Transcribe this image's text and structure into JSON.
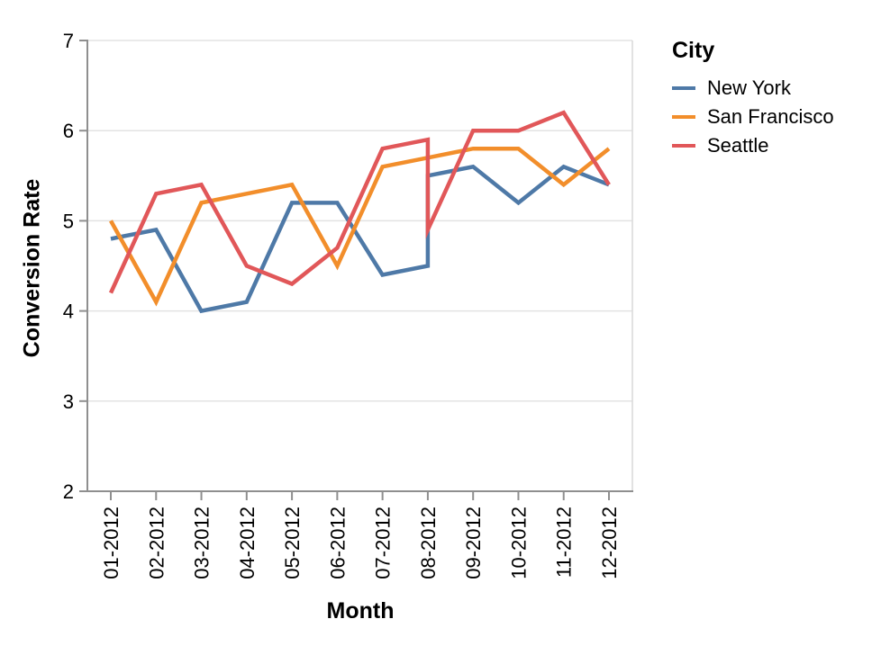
{
  "chart_data": {
    "type": "line",
    "title": "",
    "xlabel": "Month",
    "ylabel": "Conversion Rate",
    "legend_title": "City",
    "legend_position": "right",
    "grid": true,
    "ylim": [
      2,
      7
    ],
    "y_ticks": [
      2,
      3,
      4,
      5,
      6,
      7
    ],
    "x_tick_labels": [
      "01-2012",
      "02-2012",
      "03-2012",
      "04-2012",
      "05-2012",
      "06-2012",
      "07-2012",
      "08-2012",
      "09-2012",
      "10-2012",
      "11-2012",
      "12-2012"
    ],
    "series": [
      {
        "name": "New York",
        "color": "#4e79a7",
        "points": [
          [
            0,
            4.8
          ],
          [
            1,
            4.9
          ],
          [
            2,
            4.0
          ],
          [
            3,
            4.1
          ],
          [
            4,
            5.2
          ],
          [
            5,
            5.2
          ],
          [
            6,
            4.4
          ],
          [
            7,
            4.5
          ],
          [
            7,
            5.5
          ],
          [
            8,
            5.6
          ],
          [
            9,
            5.2
          ],
          [
            10,
            5.6
          ],
          [
            11,
            5.4
          ]
        ]
      },
      {
        "name": "San Francisco",
        "color": "#f28e2b",
        "points": [
          [
            0,
            5.0
          ],
          [
            1,
            4.1
          ],
          [
            2,
            5.2
          ],
          [
            3,
            5.3
          ],
          [
            4,
            5.4
          ],
          [
            5,
            4.5
          ],
          [
            6,
            5.6
          ],
          [
            7,
            5.7
          ],
          [
            8,
            5.8
          ],
          [
            9,
            5.8
          ],
          [
            10,
            5.4
          ],
          [
            11,
            5.8
          ]
        ]
      },
      {
        "name": "Seattle",
        "color": "#e15759",
        "points": [
          [
            0,
            4.2
          ],
          [
            1,
            5.3
          ],
          [
            2,
            5.4
          ],
          [
            3,
            4.5
          ],
          [
            4,
            4.3
          ],
          [
            5,
            4.7
          ],
          [
            6,
            5.8
          ],
          [
            7,
            5.9
          ],
          [
            7,
            4.9
          ],
          [
            8,
            6.0
          ],
          [
            9,
            6.0
          ],
          [
            10,
            6.2
          ],
          [
            11,
            5.4
          ]
        ]
      }
    ]
  },
  "styles": {
    "background": "#ffffff",
    "grid_color": "#e3e3e3",
    "border_color": "#d9d9d9",
    "axis_color": "#8f8f8f",
    "text_color": "#000000"
  }
}
